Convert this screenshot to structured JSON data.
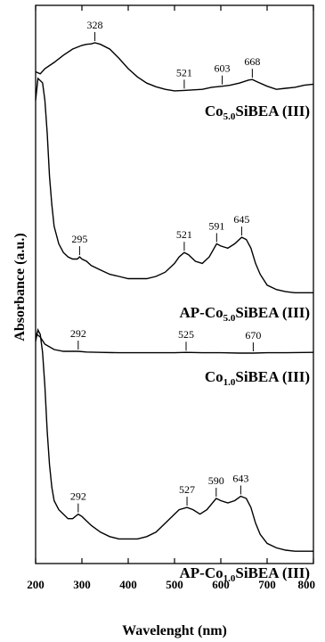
{
  "chart_data": {
    "type": "line",
    "xlabel": "Wavelenght (nm)",
    "ylabel": "Absorbance (a.u.)",
    "xlim": [
      200,
      800
    ],
    "x_ticks": [
      200,
      300,
      400,
      500,
      600,
      700,
      800
    ],
    "grid": false,
    "legend": "none",
    "y_tick_labels": false,
    "series": [
      {
        "label_main": "Co",
        "label_sub": "5.0",
        "label_rest": "SiBEA (III)",
        "peaks": [
          328,
          521,
          603,
          668
        ],
        "values": [
          [
            200,
            0.56
          ],
          [
            210,
            0.6
          ],
          [
            220,
            0.5
          ],
          [
            240,
            0.38
          ],
          [
            260,
            0.24
          ],
          [
            280,
            0.12
          ],
          [
            300,
            0.05
          ],
          [
            310,
            0.03
          ],
          [
            320,
            0.02
          ],
          [
            328,
            0.0
          ],
          [
            340,
            0.03
          ],
          [
            360,
            0.12
          ],
          [
            380,
            0.3
          ],
          [
            400,
            0.5
          ],
          [
            420,
            0.66
          ],
          [
            440,
            0.78
          ],
          [
            460,
            0.85
          ],
          [
            480,
            0.9
          ],
          [
            500,
            0.93
          ],
          [
            521,
            0.92
          ],
          [
            540,
            0.91
          ],
          [
            560,
            0.9
          ],
          [
            580,
            0.86
          ],
          [
            603,
            0.84
          ],
          [
            620,
            0.82
          ],
          [
            640,
            0.78
          ],
          [
            660,
            0.72
          ],
          [
            668,
            0.71
          ],
          [
            680,
            0.76
          ],
          [
            700,
            0.84
          ],
          [
            720,
            0.9
          ],
          [
            740,
            0.88
          ],
          [
            760,
            0.86
          ],
          [
            780,
            0.82
          ],
          [
            800,
            0.8
          ]
        ]
      },
      {
        "label_main": "AP-Co",
        "label_sub": "5.0",
        "label_rest": "SiBEA (III)",
        "peaks": [
          295,
          521,
          591,
          645
        ],
        "values": [
          [
            200,
            0.1
          ],
          [
            205,
            0.0
          ],
          [
            210,
            0.01
          ],
          [
            215,
            0.02
          ],
          [
            220,
            0.1
          ],
          [
            225,
            0.25
          ],
          [
            230,
            0.45
          ],
          [
            235,
            0.58
          ],
          [
            240,
            0.68
          ],
          [
            250,
            0.76
          ],
          [
            260,
            0.8
          ],
          [
            270,
            0.82
          ],
          [
            280,
            0.83
          ],
          [
            290,
            0.83
          ],
          [
            295,
            0.82
          ],
          [
            300,
            0.83
          ],
          [
            310,
            0.84
          ],
          [
            320,
            0.86
          ],
          [
            340,
            0.88
          ],
          [
            360,
            0.9
          ],
          [
            380,
            0.91
          ],
          [
            400,
            0.92
          ],
          [
            420,
            0.92
          ],
          [
            440,
            0.92
          ],
          [
            460,
            0.91
          ],
          [
            480,
            0.89
          ],
          [
            500,
            0.85
          ],
          [
            510,
            0.82
          ],
          [
            521,
            0.8
          ],
          [
            530,
            0.81
          ],
          [
            545,
            0.84
          ],
          [
            560,
            0.85
          ],
          [
            575,
            0.82
          ],
          [
            591,
            0.76
          ],
          [
            600,
            0.77
          ],
          [
            615,
            0.78
          ],
          [
            630,
            0.76
          ],
          [
            645,
            0.73
          ],
          [
            655,
            0.74
          ],
          [
            665,
            0.78
          ],
          [
            675,
            0.85
          ],
          [
            685,
            0.9
          ],
          [
            700,
            0.95
          ],
          [
            720,
            0.97
          ],
          [
            740,
            0.98
          ],
          [
            760,
            0.985
          ],
          [
            780,
            0.985
          ],
          [
            800,
            0.985
          ]
        ]
      },
      {
        "label_main": "Co",
        "label_sub": "1.0",
        "label_rest": "SiBEA (III)",
        "peaks": [
          292,
          525,
          670
        ],
        "values": [
          [
            200,
            0.1
          ],
          [
            210,
            0.2
          ],
          [
            220,
            0.4
          ],
          [
            240,
            0.55
          ],
          [
            260,
            0.6
          ],
          [
            280,
            0.6
          ],
          [
            292,
            0.6
          ],
          [
            310,
            0.62
          ],
          [
            340,
            0.63
          ],
          [
            380,
            0.64
          ],
          [
            420,
            0.64
          ],
          [
            460,
            0.64
          ],
          [
            500,
            0.64
          ],
          [
            525,
            0.63
          ],
          [
            560,
            0.64
          ],
          [
            600,
            0.64
          ],
          [
            640,
            0.65
          ],
          [
            670,
            0.65
          ],
          [
            700,
            0.64
          ],
          [
            740,
            0.64
          ],
          [
            800,
            0.63
          ]
        ]
      },
      {
        "label_main": "AP-Co",
        "label_sub": "1.0",
        "label_rest": "SiBEA (III)",
        "peaks": [
          292,
          527,
          590,
          643
        ],
        "values": [
          [
            200,
            0.05
          ],
          [
            205,
            0.0
          ],
          [
            210,
            0.02
          ],
          [
            215,
            0.1
          ],
          [
            220,
            0.25
          ],
          [
            225,
            0.45
          ],
          [
            230,
            0.6
          ],
          [
            235,
            0.7
          ],
          [
            240,
            0.76
          ],
          [
            250,
            0.8
          ],
          [
            260,
            0.82
          ],
          [
            270,
            0.84
          ],
          [
            280,
            0.84
          ],
          [
            292,
            0.82
          ],
          [
            300,
            0.83
          ],
          [
            310,
            0.85
          ],
          [
            320,
            0.87
          ],
          [
            340,
            0.9
          ],
          [
            360,
            0.92
          ],
          [
            380,
            0.93
          ],
          [
            400,
            0.93
          ],
          [
            420,
            0.93
          ],
          [
            440,
            0.92
          ],
          [
            460,
            0.9
          ],
          [
            480,
            0.86
          ],
          [
            500,
            0.82
          ],
          [
            510,
            0.8
          ],
          [
            527,
            0.79
          ],
          [
            540,
            0.8
          ],
          [
            555,
            0.82
          ],
          [
            570,
            0.8
          ],
          [
            590,
            0.75
          ],
          [
            600,
            0.76
          ],
          [
            615,
            0.77
          ],
          [
            630,
            0.76
          ],
          [
            643,
            0.74
          ],
          [
            655,
            0.75
          ],
          [
            665,
            0.79
          ],
          [
            675,
            0.86
          ],
          [
            685,
            0.91
          ],
          [
            700,
            0.95
          ],
          [
            720,
            0.97
          ],
          [
            740,
            0.98
          ],
          [
            760,
            0.985
          ],
          [
            780,
            0.985
          ],
          [
            800,
            0.985
          ]
        ]
      }
    ]
  }
}
